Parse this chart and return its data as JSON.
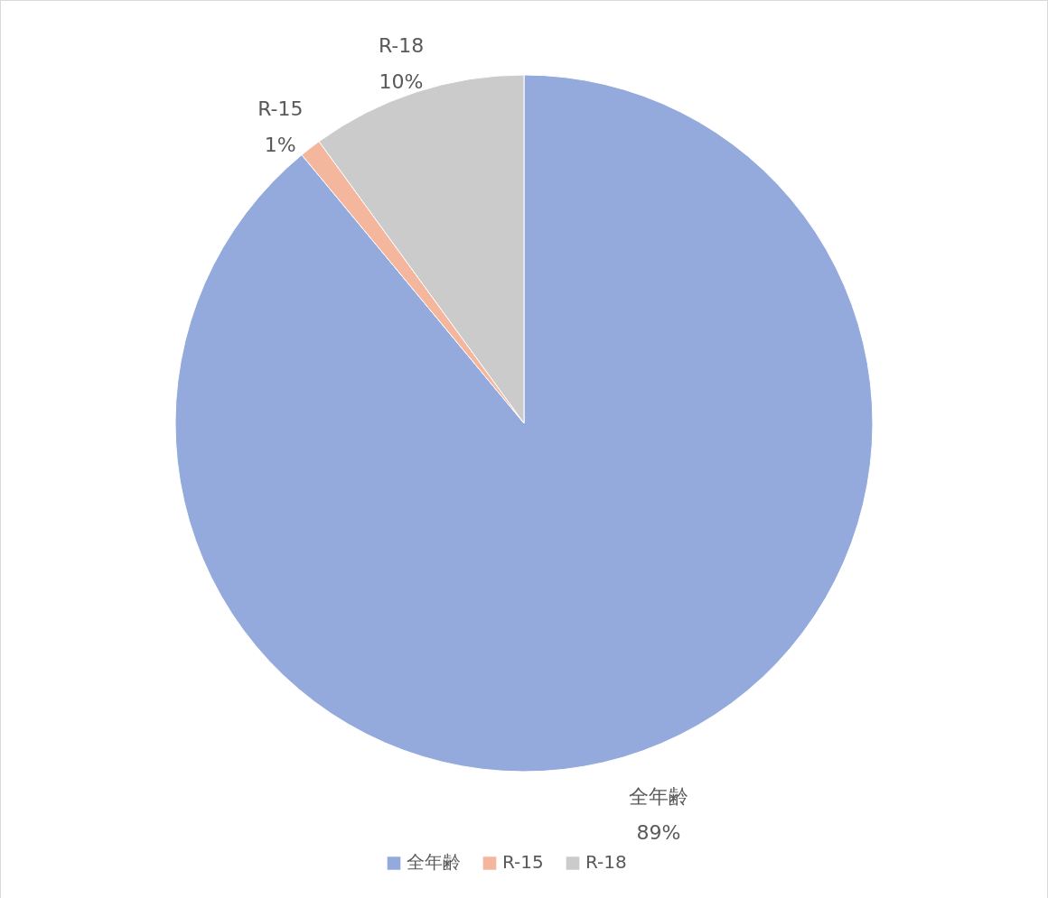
{
  "chart_data": {
    "type": "pie",
    "categories": [
      "全年齢",
      "R-15",
      "R-18"
    ],
    "values": [
      89,
      1,
      10
    ],
    "colors": [
      "#94a9dc",
      "#f4b69c",
      "#cbcbcb"
    ],
    "value_labels": [
      "89%",
      "1%",
      "10%"
    ],
    "legend": "bottom"
  }
}
